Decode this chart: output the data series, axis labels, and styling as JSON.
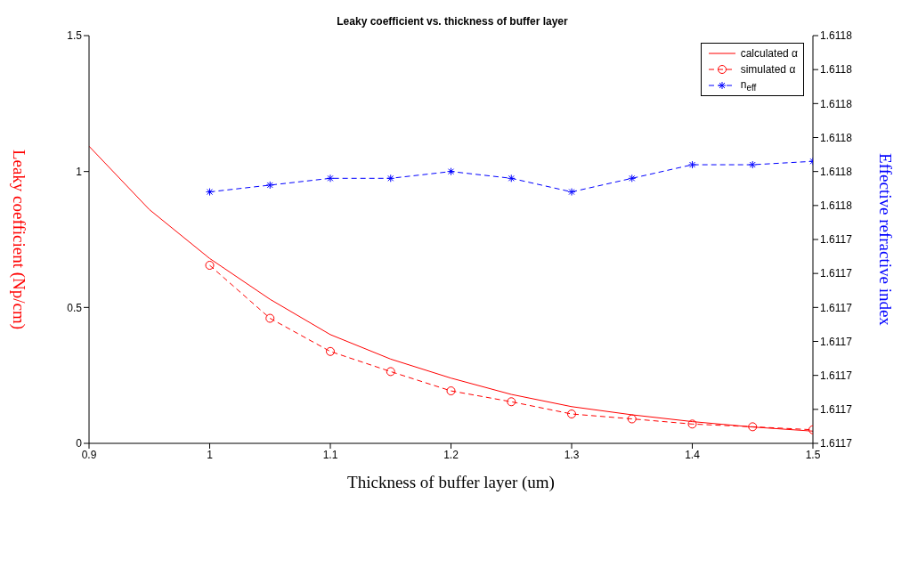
{
  "chart_data": {
    "type": "line",
    "title": "Leaky coefficient vs. thickness of buffer layer",
    "xlabel": "Thickness of buffer layer (um)",
    "ylabel": "Leaky coefficient (Np/cm)",
    "y2label": "Effective refractive index",
    "xlim": [
      0.9,
      1.5
    ],
    "xticks": [
      0.9,
      1,
      1.1,
      1.2,
      1.3,
      1.4,
      1.5
    ],
    "ylim": [
      0,
      1.5
    ],
    "yticks": [
      0,
      0.5,
      1,
      1.5
    ],
    "y2lim": [
      1.611685,
      1.611805
    ],
    "y2ticks": [
      {
        "value": 1.611685,
        "label": "1.6117"
      },
      {
        "value": 1.611695,
        "label": "1.6117"
      },
      {
        "value": 1.611705,
        "label": "1.6117"
      },
      {
        "value": 1.611715,
        "label": "1.6117"
      },
      {
        "value": 1.611725,
        "label": "1.6117"
      },
      {
        "value": 1.611735,
        "label": "1.6117"
      },
      {
        "value": 1.611745,
        "label": "1.6117"
      },
      {
        "value": 1.611755,
        "label": "1.6118"
      },
      {
        "value": 1.611765,
        "label": "1.6118"
      },
      {
        "value": 1.611775,
        "label": "1.6118"
      },
      {
        "value": 1.611785,
        "label": "1.6118"
      },
      {
        "value": 1.611795,
        "label": "1.6118"
      },
      {
        "value": 1.611805,
        "label": "1.6118"
      }
    ],
    "legend": "top right",
    "series": [
      {
        "name": "calculated α",
        "color": "#ff0000",
        "line_style": "solid",
        "marker": "none",
        "x": [
          0.9,
          0.95,
          1,
          1.05,
          1.1,
          1.15,
          1.2,
          1.25,
          1.3,
          1.35,
          1.4,
          1.45,
          1.5
        ],
        "values": [
          1.093,
          0.86,
          0.68,
          0.53,
          0.4,
          0.31,
          0.24,
          0.18,
          0.135,
          0.105,
          0.08,
          0.06,
          0.045
        ]
      },
      {
        "name": "simulated α",
        "color": "#ff0000",
        "line_style": "dashed",
        "marker": "circle",
        "x": [
          1,
          1.05,
          1.1,
          1.15,
          1.2,
          1.25,
          1.3,
          1.35,
          1.4,
          1.45,
          1.5
        ],
        "values": [
          0.655,
          0.46,
          0.338,
          0.264,
          0.193,
          0.153,
          0.108,
          0.09,
          0.071,
          0.061,
          0.05
        ]
      },
      {
        "name": "n$_{eff}$",
        "color": "#0000ff",
        "line_style": "dashed",
        "marker": "cross",
        "axis": "y2",
        "x": [
          1,
          1.05,
          1.1,
          1.15,
          1.2,
          1.25,
          1.3,
          1.35,
          1.4,
          1.45,
          1.5
        ],
        "values": [
          1.611759,
          1.611761,
          1.611763,
          1.611763,
          1.611765,
          1.611763,
          1.611759,
          1.611763,
          1.611767,
          1.611767,
          1.611768
        ]
      }
    ]
  }
}
